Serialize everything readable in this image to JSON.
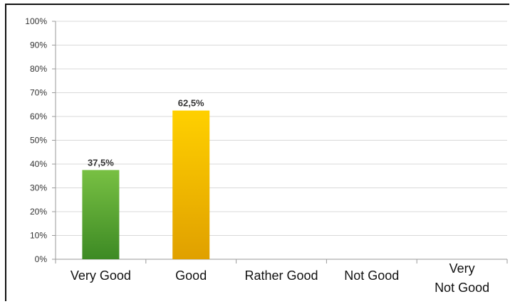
{
  "chart_data": {
    "type": "bar",
    "categories": [
      "Very Good",
      "Good",
      "Rather Good",
      "Not Good",
      "Very Not Good"
    ],
    "category_lines": [
      [
        "Very Good"
      ],
      [
        "Good"
      ],
      [
        "Rather Good"
      ],
      [
        "Not Good"
      ],
      [
        "Very",
        "Not Good"
      ]
    ],
    "values": [
      37.5,
      62.5,
      0,
      0,
      0
    ],
    "value_labels": [
      "37,5%",
      "62,5%",
      "",
      "",
      ""
    ],
    "ylim": [
      0,
      100
    ],
    "yticks": [
      0,
      10,
      20,
      30,
      40,
      50,
      60,
      70,
      80,
      90,
      100
    ],
    "ytick_labels": [
      "0%",
      "10%",
      "20%",
      "30%",
      "40%",
      "50%",
      "60%",
      "70%",
      "80%",
      "90%",
      "100%"
    ],
    "grid": true,
    "colors": {
      "bar_fills": [
        [
          "#78c043",
          "#3d8a24"
        ],
        [
          "#ffd000",
          "#e0a000"
        ],
        [
          "#cccccc",
          "#aaaaaa"
        ],
        [
          "#cccccc",
          "#aaaaaa"
        ],
        [
          "#cccccc",
          "#aaaaaa"
        ]
      ],
      "grid": "#d9d9d9",
      "axis": "#9a9a9a"
    }
  }
}
